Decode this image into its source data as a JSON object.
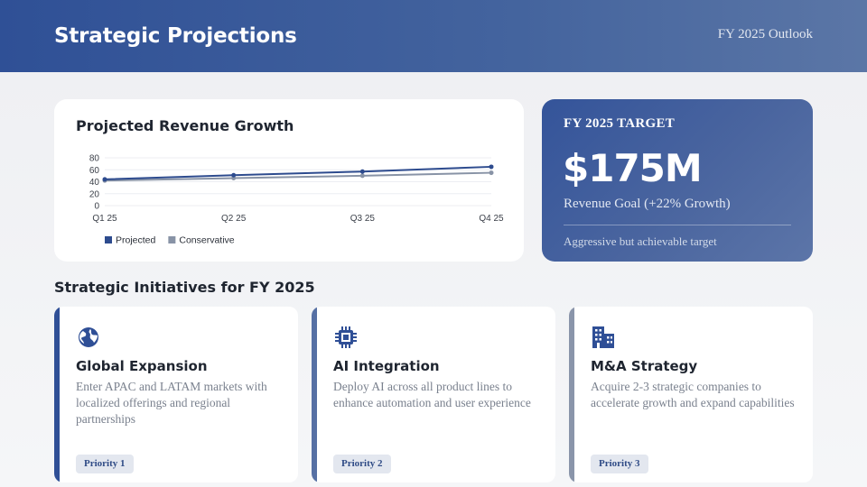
{
  "header": {
    "title": "Strategic Projections",
    "subtitle": "FY 2025 Outlook"
  },
  "chart_card": {
    "title": "Projected Revenue Growth"
  },
  "chart_data": {
    "type": "line",
    "title": "Projected Revenue Growth",
    "categories": [
      "Q1 25",
      "Q2 25",
      "Q3 25",
      "Q4 25"
    ],
    "series": [
      {
        "name": "Projected",
        "values": [
          44,
          51,
          57,
          65
        ],
        "color": "#2d4b8e"
      },
      {
        "name": "Conservative",
        "values": [
          42,
          46,
          50,
          55
        ],
        "color": "#8893a6"
      }
    ],
    "yticks": [
      0,
      20,
      40,
      60,
      80
    ],
    "ylim": [
      0,
      80
    ],
    "grid": true,
    "legend": "bottom-left",
    "xlabel": "",
    "ylabel": ""
  },
  "target": {
    "label": "FY 2025 TARGET",
    "value": "$175M",
    "goal": "Revenue Goal (+22% Growth)",
    "note": "Aggressive but achievable target"
  },
  "initiatives": {
    "section_title": "Strategic Initiatives for FY 2025",
    "items": [
      {
        "icon": "globe-icon",
        "title": "Global Expansion",
        "desc": "Enter APAC and LATAM markets with localized offerings and regional partnerships",
        "badge": "Priority 1",
        "accent": "#2f4f96"
      },
      {
        "icon": "chip-icon",
        "title": "AI Integration",
        "desc": "Deploy AI across all product lines to enhance automation and user experience",
        "badge": "Priority 2",
        "accent": "#5670a4"
      },
      {
        "icon": "building-icon",
        "title": "M&A Strategy",
        "desc": "Acquire 2-3 strategic companies to accelerate growth and expand capabilities",
        "badge": "Priority 3",
        "accent": "#8a95aa"
      }
    ]
  },
  "colors": {
    "primary": "#2d4b8e",
    "secondary": "#8893a6"
  }
}
